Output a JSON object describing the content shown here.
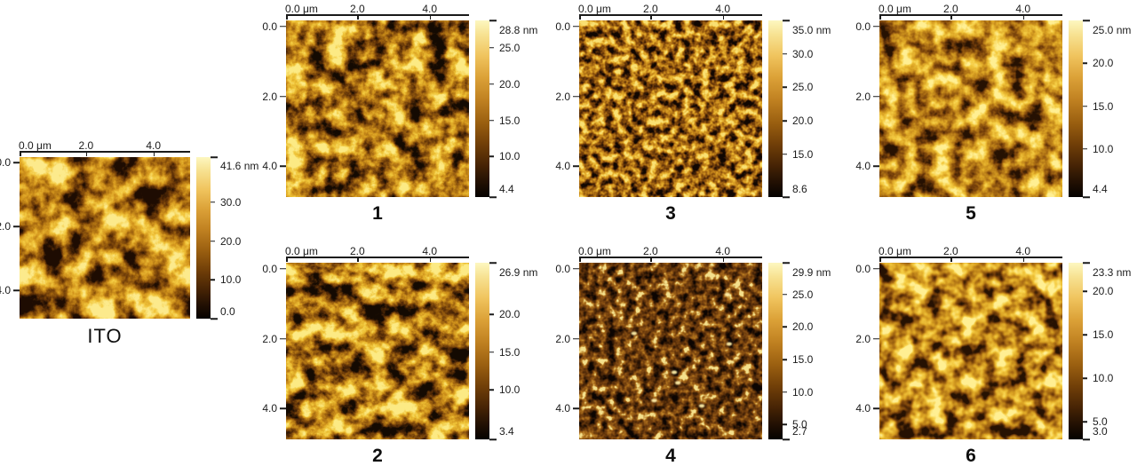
{
  "figure": {
    "type": "afm_topography_grid",
    "x_axis": {
      "unit": "μm",
      "ticks": [
        "0.0 μm",
        "2.0",
        "4.0"
      ]
    },
    "y_axis": {
      "unit": "μm",
      "ticks": [
        "0.0",
        "2.0",
        "4.0"
      ]
    },
    "panels": [
      {
        "id": "ITO",
        "label": "ITO",
        "scale": {
          "unit": "nm",
          "max": 41.6,
          "min": 0.0,
          "ticks": [
            {
              "label": "41.6 nm",
              "value": 41.6
            },
            {
              "label": "30.0",
              "value": 30.0
            },
            {
              "label": "20.0",
              "value": 20.0
            },
            {
              "label": "10.0",
              "value": 10.0
            },
            {
              "label": "0.0",
              "value": 0.0
            }
          ]
        }
      },
      {
        "id": "1",
        "label": "1",
        "scale": {
          "unit": "nm",
          "max": 28.8,
          "min": 4.4,
          "ticks": [
            {
              "label": "28.8 nm",
              "value": 28.8
            },
            {
              "label": "25.0",
              "value": 25.0
            },
            {
              "label": "20.0",
              "value": 20.0
            },
            {
              "label": "15.0",
              "value": 15.0
            },
            {
              "label": "10.0",
              "value": 10.0
            },
            {
              "label": "4.4",
              "value": 4.4
            }
          ]
        }
      },
      {
        "id": "2",
        "label": "2",
        "scale": {
          "unit": "nm",
          "max": 26.9,
          "min": 3.4,
          "ticks": [
            {
              "label": "26.9 nm",
              "value": 26.9
            },
            {
              "label": "20.0",
              "value": 20.0
            },
            {
              "label": "15.0",
              "value": 15.0
            },
            {
              "label": "10.0",
              "value": 10.0
            },
            {
              "label": "3.4",
              "value": 3.4
            }
          ]
        }
      },
      {
        "id": "3",
        "label": "3",
        "scale": {
          "unit": "nm",
          "max": 35.0,
          "min": 8.6,
          "ticks": [
            {
              "label": "35.0 nm",
              "value": 35.0
            },
            {
              "label": "30.0",
              "value": 30.0
            },
            {
              "label": "25.0",
              "value": 25.0
            },
            {
              "label": "20.0",
              "value": 20.0
            },
            {
              "label": "15.0",
              "value": 15.0
            },
            {
              "label": "8.6",
              "value": 8.6
            }
          ]
        }
      },
      {
        "id": "4",
        "label": "4",
        "scale": {
          "unit": "nm",
          "max": 29.9,
          "min": 2.7,
          "ticks": [
            {
              "label": "29.9 nm",
              "value": 29.9
            },
            {
              "label": "25.0",
              "value": 25.0
            },
            {
              "label": "20.0",
              "value": 20.0
            },
            {
              "label": "15.0",
              "value": 15.0
            },
            {
              "label": "10.0",
              "value": 10.0
            },
            {
              "label": "5.0",
              "value": 5.0
            },
            {
              "label": "2.7",
              "value": 2.7
            }
          ]
        }
      },
      {
        "id": "5",
        "label": "5",
        "scale": {
          "unit": "nm",
          "max": 25.0,
          "min": 4.4,
          "ticks": [
            {
              "label": "25.0 nm",
              "value": 25.0
            },
            {
              "label": "20.0",
              "value": 20.0
            },
            {
              "label": "15.0",
              "value": 15.0
            },
            {
              "label": "10.0",
              "value": 10.0
            },
            {
              "label": "4.4",
              "value": 4.4
            }
          ]
        }
      },
      {
        "id": "6",
        "label": "6",
        "scale": {
          "unit": "nm",
          "max": 23.3,
          "min": 3.0,
          "ticks": [
            {
              "label": "23.3 nm",
              "value": 23.3
            },
            {
              "label": "20.0",
              "value": 20.0
            },
            {
              "label": "15.0",
              "value": 15.0
            },
            {
              "label": "10.0",
              "value": 10.0
            },
            {
              "label": "5.0",
              "value": 5.0
            },
            {
              "label": "3.0",
              "value": 3.0
            }
          ]
        }
      }
    ],
    "colors": {
      "scale_top": "#fbf3b2",
      "scale_mid": "#c08121",
      "scale_bottom": "#050200",
      "text": "#1b1b1b"
    }
  }
}
